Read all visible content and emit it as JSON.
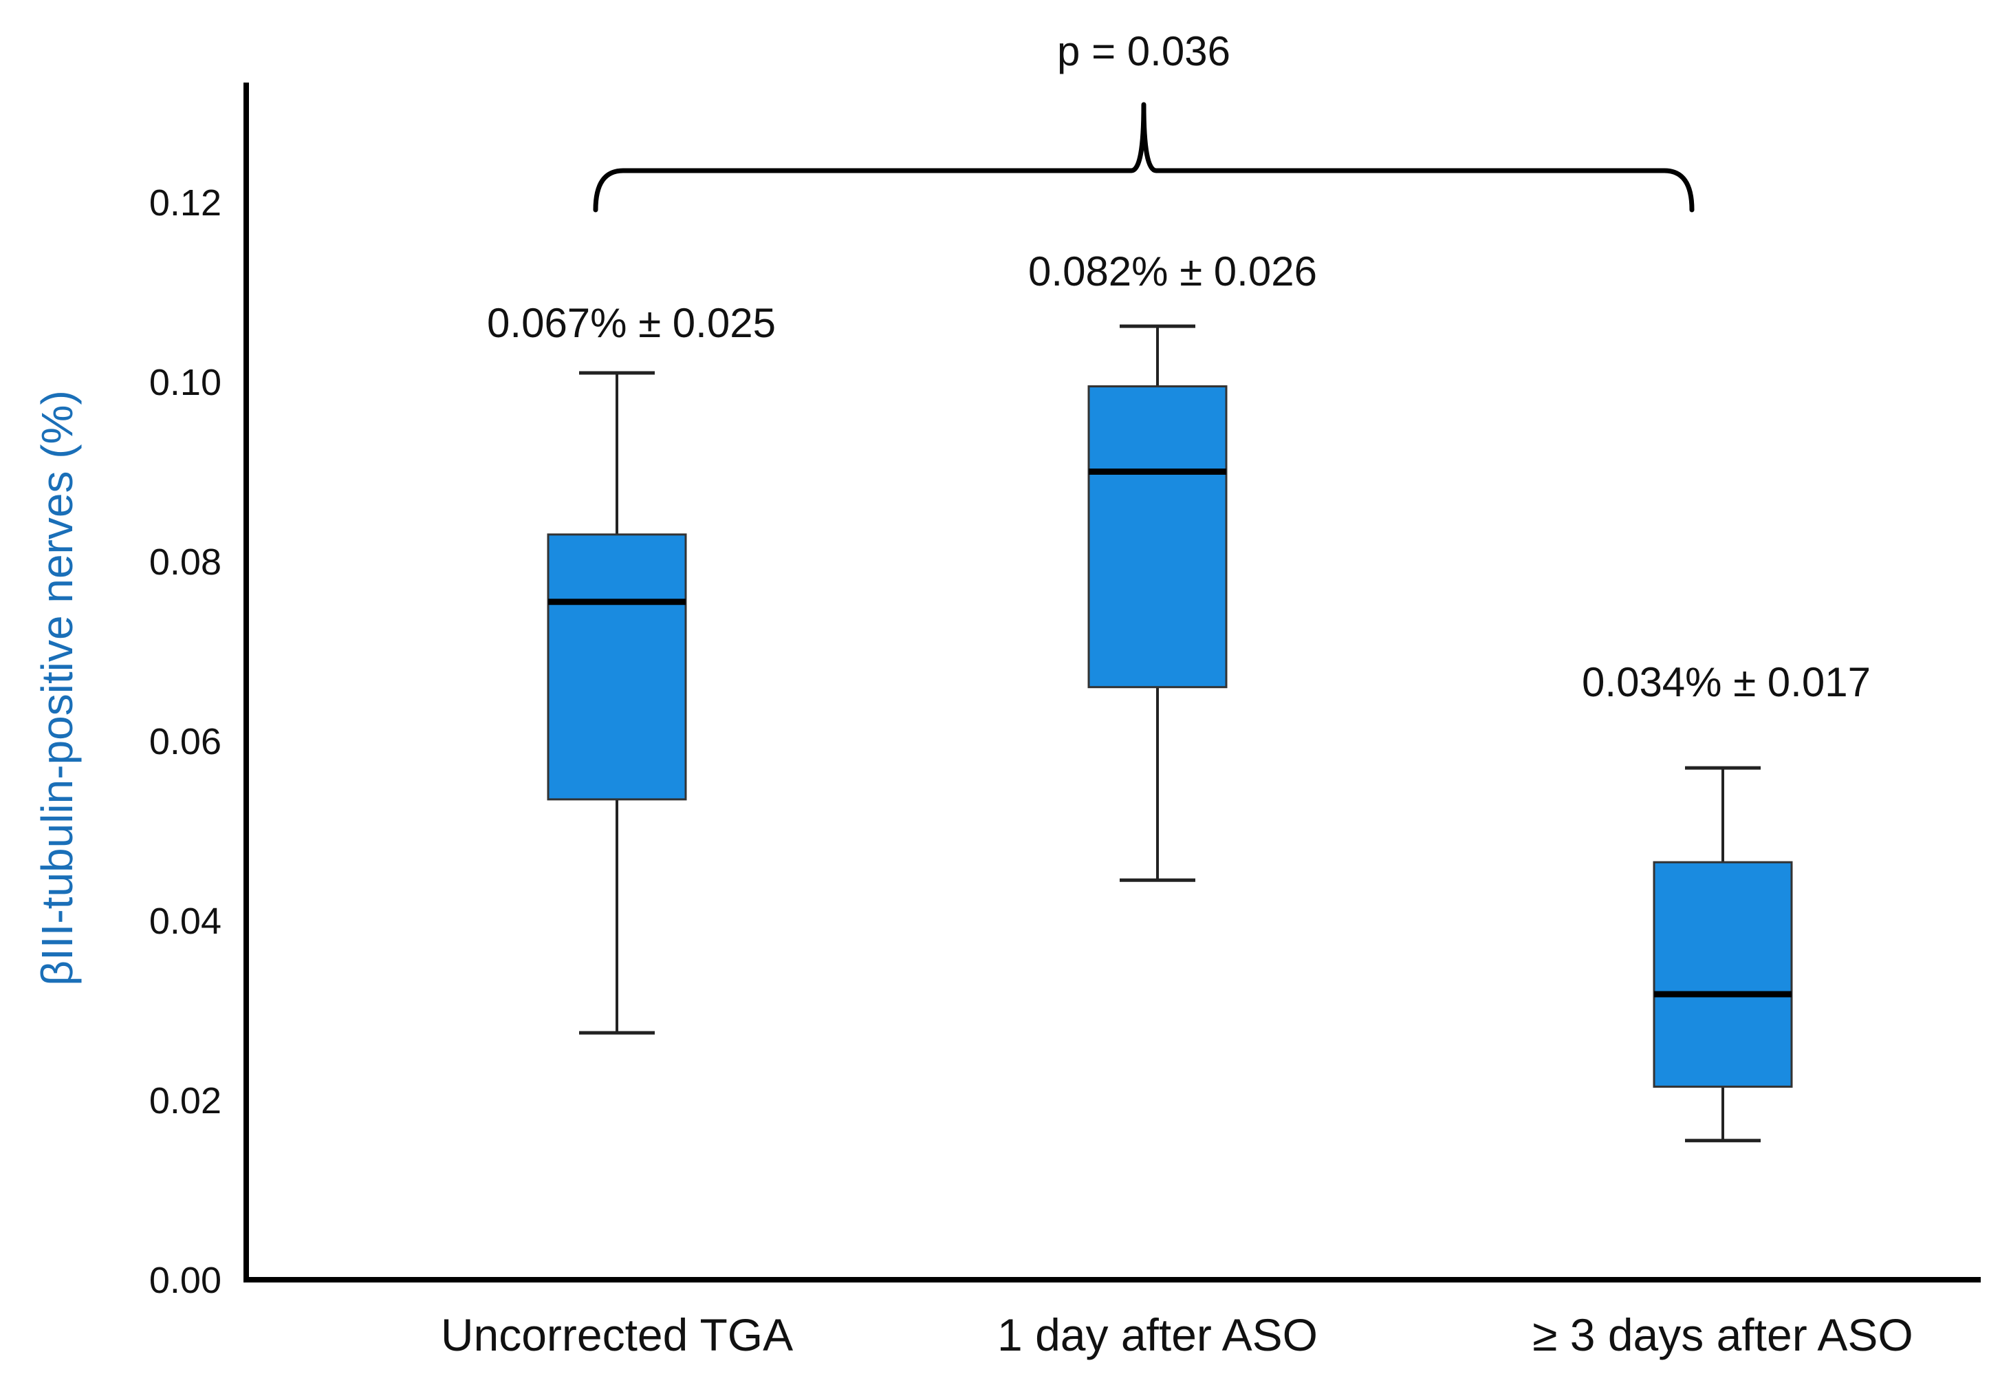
{
  "chart_data": {
    "type": "boxplot",
    "title": "",
    "xlabel": "",
    "ylabel": "βIII-tubulin-positive nerves (%)",
    "ylim": [
      0.0,
      0.13
    ],
    "yticks": [
      "0.00",
      "0.02",
      "0.04",
      "0.06",
      "0.08",
      "0.10",
      "0.12"
    ],
    "grid": false,
    "colors": {
      "box": "#1a8be0",
      "median": "#000000",
      "axis": "#000000",
      "ylabel": "#1a6fb8"
    },
    "categories": [
      "Uncorrected TGA",
      "1 day after ASO",
      "≥ 3 days after ASO"
    ],
    "boxes": [
      {
        "category": "Uncorrected TGA",
        "whisker_low": 0.0275,
        "q1": 0.0535,
        "median": 0.0755,
        "q3": 0.083,
        "whisker_high": 0.101,
        "annotation": "0.067% ± 0.025"
      },
      {
        "category": "1 day after ASO",
        "whisker_low": 0.0445,
        "q1": 0.066,
        "median": 0.09,
        "q3": 0.0995,
        "whisker_high": 0.1062,
        "annotation": "0.082% ± 0.026"
      },
      {
        "category": "≥ 3 days after ASO",
        "whisker_low": 0.0155,
        "q1": 0.0215,
        "median": 0.0318,
        "q3": 0.0465,
        "whisker_high": 0.057,
        "annotation": "0.034%  ± 0.017"
      }
    ],
    "comparison": {
      "label": "p = 0.036",
      "from": "Uncorrected TGA",
      "to": "≥ 3 days after ASO"
    }
  }
}
